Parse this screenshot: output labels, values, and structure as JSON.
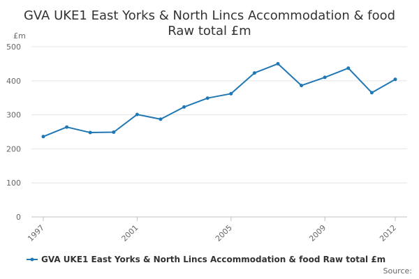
{
  "colors": {
    "series": "#1f77b4",
    "grid": "#e6e6e6",
    "axis": "#c0c0c0",
    "text": "#666666",
    "title": "#333333"
  },
  "chart_data": {
    "type": "line",
    "title": "GVA UKE1 East Yorks & North Lincs Accommodation & food",
    "subtitle": "Raw total £m",
    "ylabel": "£m",
    "ylim": [
      0,
      500
    ],
    "yticks": [
      0,
      100,
      200,
      300,
      400,
      500
    ],
    "xlim": [
      1997,
      2012
    ],
    "xticks": [
      1997,
      2001,
      2005,
      2009,
      2012
    ],
    "grid": true,
    "legend_position": "bottom",
    "source_label": "Source:",
    "series": [
      {
        "name": "GVA UKE1 East Yorks & North Lincs Accommodation & food Raw total £m",
        "x": [
          1997,
          1998,
          1999,
          2000,
          2001,
          2002,
          2003,
          2004,
          2005,
          2006,
          2007,
          2008,
          2009,
          2010,
          2011,
          2012
        ],
        "values": [
          236,
          264,
          248,
          249,
          301,
          287,
          323,
          349,
          362,
          423,
          450,
          386,
          410,
          437,
          365,
          404
        ]
      }
    ]
  }
}
